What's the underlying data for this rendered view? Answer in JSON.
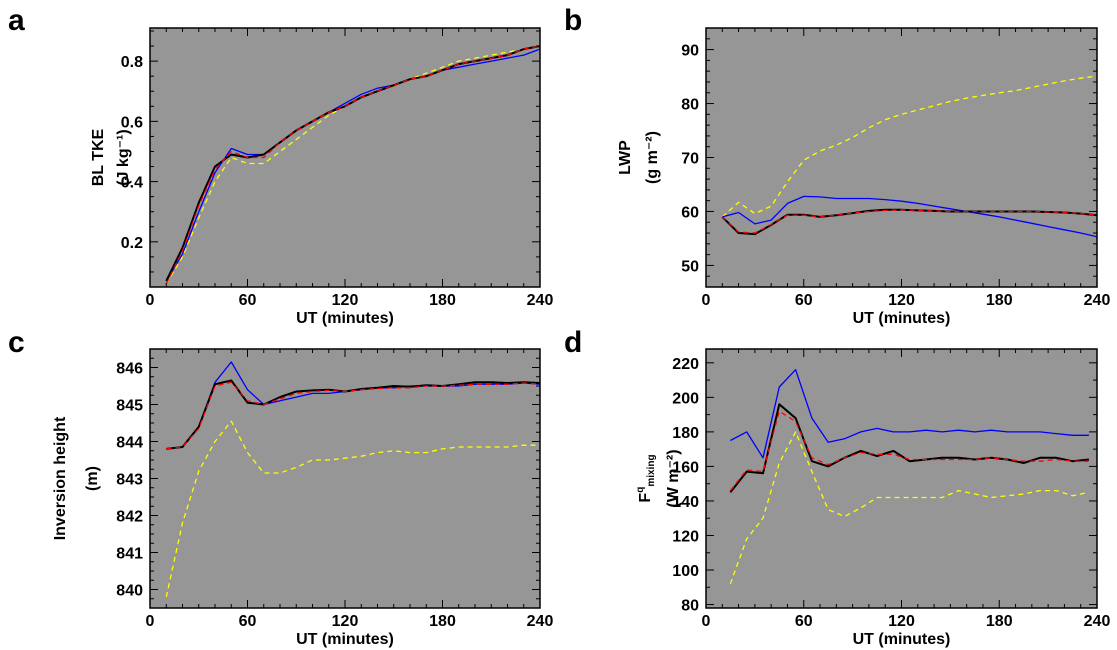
{
  "chart_data": [
    {
      "type": "line",
      "panel_label": "a",
      "xlabel": "UT (minutes)",
      "ylabel_line1": "BL TKE",
      "ylabel_unit": "(J kg⁻¹)",
      "xlim": [
        0,
        240
      ],
      "ylim": [
        0.05,
        0.91
      ],
      "xticks": [
        0,
        60,
        120,
        180,
        240
      ],
      "xminor": 10,
      "yticks": [
        0.2,
        0.4,
        0.6,
        0.8
      ],
      "ytick_labels": [
        "0.2",
        "0.4",
        "0.6",
        "0.8"
      ],
      "yminor": 0.05,
      "series": [
        {
          "color": "#000000",
          "width": 2,
          "dash": "",
          "x": [
            10,
            20,
            30,
            40,
            50,
            60,
            70,
            80,
            90,
            100,
            110,
            120,
            130,
            140,
            150,
            160,
            170,
            180,
            190,
            200,
            210,
            220,
            230,
            240
          ],
          "y": [
            0.07,
            0.18,
            0.33,
            0.45,
            0.49,
            0.48,
            0.49,
            0.53,
            0.57,
            0.6,
            0.63,
            0.65,
            0.68,
            0.7,
            0.72,
            0.74,
            0.75,
            0.77,
            0.79,
            0.8,
            0.81,
            0.82,
            0.84,
            0.85
          ]
        },
        {
          "color": "#0000ff",
          "width": 1.3,
          "dash": "",
          "x": [
            10,
            20,
            30,
            40,
            50,
            60,
            70,
            80,
            90,
            100,
            110,
            120,
            130,
            140,
            150,
            160,
            170,
            180,
            190,
            200,
            210,
            220,
            230,
            240
          ],
          "y": [
            0.07,
            0.16,
            0.3,
            0.43,
            0.51,
            0.49,
            0.49,
            0.53,
            0.57,
            0.6,
            0.63,
            0.66,
            0.69,
            0.71,
            0.72,
            0.74,
            0.75,
            0.77,
            0.78,
            0.79,
            0.8,
            0.81,
            0.82,
            0.84
          ]
        },
        {
          "color": "#ff0000",
          "width": 1.3,
          "dash": "5,4",
          "x": [
            10,
            20,
            30,
            40,
            50,
            60,
            70,
            80,
            90,
            100,
            110,
            120,
            130,
            140,
            150,
            160,
            170,
            180,
            190,
            200,
            210,
            220,
            230,
            240
          ],
          "y": [
            0.06,
            0.17,
            0.32,
            0.44,
            0.5,
            0.48,
            0.48,
            0.53,
            0.57,
            0.6,
            0.63,
            0.65,
            0.68,
            0.7,
            0.72,
            0.74,
            0.75,
            0.77,
            0.79,
            0.8,
            0.81,
            0.82,
            0.84,
            0.85
          ]
        },
        {
          "color": "#ffff00",
          "width": 1.3,
          "dash": "5,4",
          "x": [
            10,
            20,
            30,
            40,
            50,
            60,
            70,
            80,
            90,
            100,
            110,
            120,
            130,
            140,
            150,
            160,
            170,
            180,
            190,
            200,
            210,
            220,
            230,
            240
          ],
          "y": [
            0.06,
            0.15,
            0.28,
            0.4,
            0.48,
            0.46,
            0.46,
            0.5,
            0.54,
            0.58,
            0.62,
            0.65,
            0.68,
            0.7,
            0.72,
            0.74,
            0.76,
            0.78,
            0.8,
            0.81,
            0.82,
            0.83,
            0.84,
            0.85
          ]
        }
      ]
    },
    {
      "type": "line",
      "panel_label": "b",
      "xlabel": "UT (minutes)",
      "ylabel_line1": "LWP",
      "ylabel_unit": "(g m⁻²)",
      "xlim": [
        0,
        240
      ],
      "ylim": [
        46,
        94
      ],
      "xticks": [
        0,
        60,
        120,
        180,
        240
      ],
      "xminor": 10,
      "yticks": [
        50,
        60,
        70,
        80,
        90
      ],
      "ytick_labels": [
        "50",
        "60",
        "70",
        "80",
        "90"
      ],
      "yminor": 2,
      "series": [
        {
          "color": "#000000",
          "width": 2,
          "dash": "",
          "x": [
            10,
            20,
            30,
            40,
            50,
            60,
            70,
            80,
            90,
            100,
            110,
            120,
            130,
            140,
            150,
            160,
            170,
            180,
            190,
            200,
            210,
            220,
            230,
            240
          ],
          "y": [
            59.0,
            56.0,
            55.8,
            57.5,
            59.4,
            59.4,
            59.0,
            59.3,
            59.7,
            60.1,
            60.3,
            60.3,
            60.2,
            60.1,
            60.0,
            60.0,
            60.0,
            60.0,
            60.0,
            60.0,
            59.9,
            59.8,
            59.6,
            59.3
          ]
        },
        {
          "color": "#0000ff",
          "width": 1.3,
          "dash": "",
          "x": [
            10,
            20,
            30,
            40,
            50,
            60,
            70,
            80,
            90,
            100,
            110,
            120,
            130,
            140,
            150,
            160,
            170,
            180,
            190,
            200,
            210,
            220,
            230,
            240
          ],
          "y": [
            59.0,
            59.8,
            57.7,
            58.4,
            61.5,
            62.8,
            62.7,
            62.4,
            62.4,
            62.4,
            62.2,
            61.9,
            61.5,
            61.0,
            60.5,
            60.0,
            59.5,
            59.0,
            58.4,
            57.8,
            57.2,
            56.6,
            56.0,
            55.3
          ]
        },
        {
          "color": "#ff0000",
          "width": 1.3,
          "dash": "5,4",
          "x": [
            10,
            20,
            30,
            40,
            50,
            60,
            70,
            80,
            90,
            100,
            110,
            120,
            130,
            140,
            150,
            160,
            170,
            180,
            190,
            200,
            210,
            220,
            230,
            240
          ],
          "y": [
            59.0,
            56.2,
            56.0,
            57.6,
            59.3,
            59.3,
            59.0,
            59.3,
            59.7,
            60.0,
            60.2,
            60.3,
            60.2,
            60.1,
            60.0,
            60.0,
            60.0,
            60.0,
            60.0,
            60.0,
            59.9,
            59.8,
            59.6,
            59.3
          ]
        },
        {
          "color": "#ffff00",
          "width": 1.3,
          "dash": "5,4",
          "x": [
            10,
            20,
            30,
            40,
            50,
            60,
            70,
            80,
            90,
            100,
            110,
            120,
            130,
            140,
            150,
            160,
            170,
            180,
            190,
            200,
            210,
            220,
            230,
            240
          ],
          "y": [
            59.0,
            61.7,
            59.6,
            61.0,
            65.5,
            69.5,
            71.2,
            72.3,
            73.7,
            75.5,
            77.0,
            78.0,
            78.8,
            79.6,
            80.4,
            81.0,
            81.5,
            82.0,
            82.4,
            83.0,
            83.6,
            84.2,
            84.7,
            85.1
          ]
        }
      ]
    },
    {
      "type": "line",
      "panel_label": "c",
      "xlabel": "UT (minutes)",
      "ylabel_line1": "Inversion height",
      "ylabel_unit": "(m)",
      "xlim": [
        0,
        240
      ],
      "ylim": [
        839.5,
        846.5
      ],
      "xticks": [
        0,
        60,
        120,
        180,
        240
      ],
      "xminor": 10,
      "yticks": [
        840,
        841,
        842,
        843,
        844,
        845,
        846
      ],
      "ytick_labels": [
        "840",
        "841",
        "842",
        "843",
        "844",
        "845",
        "846"
      ],
      "yminor": 0.25,
      "series": [
        {
          "color": "#000000",
          "width": 2,
          "dash": "",
          "x": [
            10,
            20,
            30,
            40,
            50,
            60,
            70,
            80,
            90,
            100,
            110,
            120,
            130,
            140,
            150,
            160,
            170,
            180,
            190,
            200,
            210,
            220,
            230,
            240
          ],
          "y": [
            843.8,
            843.85,
            844.4,
            845.55,
            845.65,
            845.05,
            845.0,
            845.2,
            845.35,
            845.38,
            845.4,
            845.35,
            845.42,
            845.45,
            845.5,
            845.48,
            845.52,
            845.5,
            845.55,
            845.6,
            845.6,
            845.58,
            845.6,
            845.58
          ]
        },
        {
          "color": "#0000ff",
          "width": 1.3,
          "dash": "",
          "x": [
            10,
            20,
            30,
            40,
            50,
            60,
            70,
            80,
            90,
            100,
            110,
            120,
            130,
            140,
            150,
            160,
            170,
            180,
            190,
            200,
            210,
            220,
            230,
            240
          ],
          "y": [
            843.8,
            843.85,
            844.4,
            845.6,
            846.15,
            845.4,
            845.0,
            845.1,
            845.2,
            845.3,
            845.3,
            845.35,
            845.4,
            845.45,
            845.45,
            845.5,
            845.5,
            845.5,
            845.5,
            845.55,
            845.55,
            845.55,
            845.58,
            845.55
          ]
        },
        {
          "color": "#ff0000",
          "width": 1.3,
          "dash": "5,4",
          "x": [
            10,
            20,
            30,
            40,
            50,
            60,
            70,
            80,
            90,
            100,
            110,
            120,
            130,
            140,
            150,
            160,
            170,
            180,
            190,
            200,
            210,
            220,
            230,
            240
          ],
          "y": [
            843.8,
            843.85,
            844.35,
            845.5,
            845.6,
            845.1,
            845.0,
            845.15,
            845.3,
            845.35,
            845.38,
            845.35,
            845.4,
            845.43,
            845.45,
            845.45,
            845.5,
            845.5,
            845.52,
            845.55,
            845.55,
            845.55,
            845.58,
            845.55
          ]
        },
        {
          "color": "#ffff00",
          "width": 1.3,
          "dash": "5,4",
          "x": [
            10,
            20,
            30,
            40,
            50,
            60,
            70,
            80,
            90,
            100,
            110,
            120,
            130,
            140,
            150,
            160,
            170,
            180,
            190,
            200,
            210,
            220,
            230,
            240
          ],
          "y": [
            839.8,
            841.8,
            843.2,
            844.0,
            844.55,
            843.7,
            843.15,
            843.15,
            843.3,
            843.5,
            843.5,
            843.55,
            843.6,
            843.7,
            843.75,
            843.7,
            843.7,
            843.8,
            843.85,
            843.85,
            843.85,
            843.85,
            843.9,
            843.9
          ]
        }
      ]
    },
    {
      "type": "line",
      "panel_label": "d",
      "xlabel": "UT (minutes)",
      "ylabel_main": "F",
      "ylabel_sup": "q",
      "ylabel_sub": "mixing",
      "ylabel_unit": "(W m⁻²)",
      "xlim": [
        0,
        240
      ],
      "ylim": [
        78,
        228
      ],
      "xticks": [
        0,
        60,
        120,
        180,
        240
      ],
      "xminor": 10,
      "yticks": [
        80,
        100,
        120,
        140,
        160,
        180,
        200,
        220
      ],
      "ytick_labels": [
        "80",
        "100",
        "120",
        "140",
        "160",
        "180",
        "200",
        "220"
      ],
      "yminor": 10,
      "series": [
        {
          "color": "#000000",
          "width": 2,
          "dash": "",
          "x": [
            15,
            25,
            35,
            45,
            55,
            65,
            75,
            85,
            95,
            105,
            115,
            125,
            135,
            145,
            155,
            165,
            175,
            185,
            195,
            205,
            215,
            225,
            235
          ],
          "y": [
            145,
            157,
            156,
            196,
            188,
            163,
            160,
            165,
            169,
            166,
            169,
            163,
            164,
            165,
            165,
            164,
            165,
            164,
            162,
            165,
            165,
            163,
            164
          ]
        },
        {
          "color": "#0000ff",
          "width": 1.3,
          "dash": "",
          "x": [
            15,
            25,
            35,
            45,
            55,
            65,
            75,
            85,
            95,
            105,
            115,
            125,
            135,
            145,
            155,
            165,
            175,
            185,
            195,
            205,
            215,
            225,
            235
          ],
          "y": [
            175,
            180,
            165,
            206,
            216,
            188,
            174,
            176,
            180,
            182,
            180,
            180,
            181,
            180,
            181,
            180,
            181,
            180,
            180,
            180,
            179,
            178,
            178
          ]
        },
        {
          "color": "#ff0000",
          "width": 1.3,
          "dash": "5,4",
          "x": [
            15,
            25,
            35,
            45,
            55,
            65,
            75,
            85,
            95,
            105,
            115,
            125,
            135,
            145,
            155,
            165,
            175,
            185,
            195,
            205,
            215,
            225,
            235
          ],
          "y": [
            146,
            158,
            157,
            192,
            186,
            165,
            161,
            165,
            168,
            167,
            167,
            164,
            164,
            164,
            164,
            164,
            165,
            164,
            163,
            163,
            164,
            163,
            163
          ]
        },
        {
          "color": "#ffff00",
          "width": 1.3,
          "dash": "5,4",
          "x": [
            15,
            25,
            35,
            45,
            55,
            65,
            75,
            85,
            95,
            105,
            115,
            125,
            135,
            145,
            155,
            165,
            175,
            185,
            195,
            205,
            215,
            225,
            235
          ],
          "y": [
            92,
            118,
            130,
            162,
            180,
            157,
            135,
            131,
            136,
            142,
            142,
            142,
            142,
            142,
            146,
            144,
            142,
            143,
            144,
            146,
            146,
            143,
            145
          ]
        }
      ]
    }
  ]
}
